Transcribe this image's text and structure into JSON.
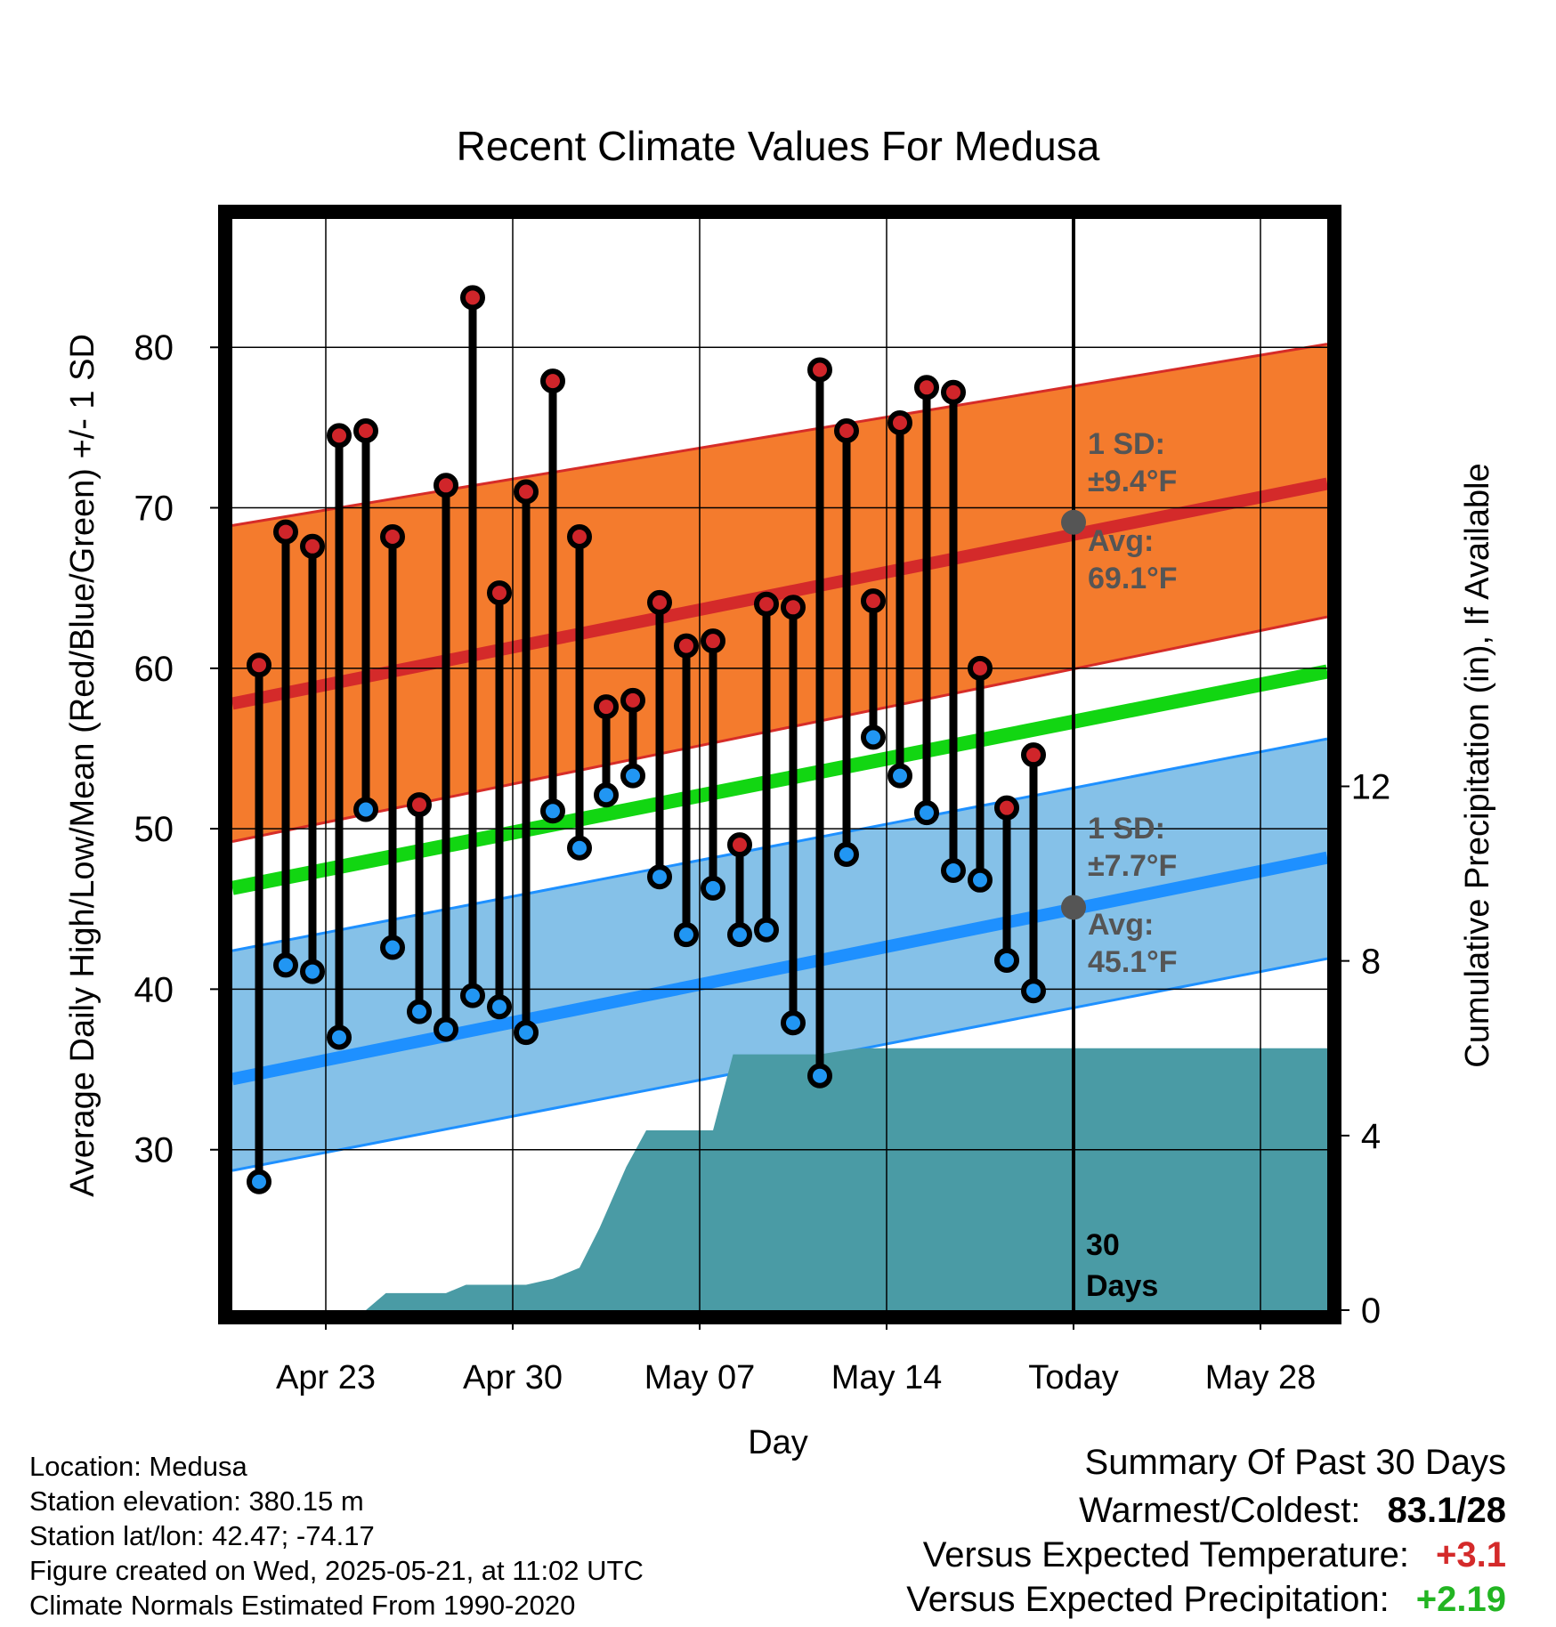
{
  "chart_data": {
    "type": "range-dot",
    "title": "Recent Climate Values For Medusa",
    "xlabel": "Day",
    "ylabel_left": "Average Daily High/Low/Mean (Red/Blue/Green) +/- 1 SD",
    "ylabel_right": "Cumulative Precipitation (in), If Available",
    "x_tick_labels": [
      "Apr 23",
      "Apr 30",
      "May 07",
      "May 14",
      "Today",
      "May 28"
    ],
    "x_tick_dates": [
      "2025-04-23",
      "2025-04-30",
      "2025-05-07",
      "2025-05-14",
      "2025-05-21",
      "2025-05-28"
    ],
    "x_range": [
      "2025-04-19T12:00",
      "2025-05-30T12:00"
    ],
    "y_left_ticks": [
      30,
      40,
      50,
      60,
      70,
      80
    ],
    "y_left_range": [
      20,
      88
    ],
    "y_right_ticks": [
      0,
      4,
      8,
      12
    ],
    "y_right_range": [
      0,
      25.0
    ],
    "grid": true,
    "today_marker": {
      "date": "2025-05-21",
      "label_line1": "30",
      "label_line2": "Days"
    },
    "daily": [
      {
        "date": "2025-04-20",
        "high": 60.2,
        "low": 28.0
      },
      {
        "date": "2025-04-21",
        "high": 68.5,
        "low": 41.5
      },
      {
        "date": "2025-04-22",
        "high": 67.6,
        "low": 41.1
      },
      {
        "date": "2025-04-23",
        "high": 74.5,
        "low": 37.0
      },
      {
        "date": "2025-04-24",
        "high": 74.8,
        "low": 51.2
      },
      {
        "date": "2025-04-25",
        "high": 68.2,
        "low": 42.6
      },
      {
        "date": "2025-04-26",
        "high": 51.5,
        "low": 38.6
      },
      {
        "date": "2025-04-27",
        "high": 71.4,
        "low": 37.5
      },
      {
        "date": "2025-04-28",
        "high": 83.1,
        "low": 39.6
      },
      {
        "date": "2025-04-29",
        "high": 64.7,
        "low": 38.9
      },
      {
        "date": "2025-04-30",
        "high": 71.0,
        "low": 37.3
      },
      {
        "date": "2025-05-01",
        "high": 77.9,
        "low": 51.1
      },
      {
        "date": "2025-05-02",
        "high": 68.2,
        "low": 48.8
      },
      {
        "date": "2025-05-03",
        "high": 57.6,
        "low": 52.1
      },
      {
        "date": "2025-05-04",
        "high": 58.0,
        "low": 53.3
      },
      {
        "date": "2025-05-05",
        "high": 64.1,
        "low": 47.0
      },
      {
        "date": "2025-05-06",
        "high": 61.4,
        "low": 43.4
      },
      {
        "date": "2025-05-07",
        "high": 61.7,
        "low": 46.3
      },
      {
        "date": "2025-05-08",
        "high": 49.0,
        "low": 43.4
      },
      {
        "date": "2025-05-09",
        "high": 64.0,
        "low": 43.7
      },
      {
        "date": "2025-05-10",
        "high": 63.8,
        "low": 37.9
      },
      {
        "date": "2025-05-11",
        "high": 78.6,
        "low": 34.6
      },
      {
        "date": "2025-05-12",
        "high": 74.8,
        "low": 48.4
      },
      {
        "date": "2025-05-13",
        "high": 64.2,
        "low": 55.7
      },
      {
        "date": "2025-05-14",
        "high": 75.3,
        "low": 53.3
      },
      {
        "date": "2025-05-15",
        "high": 77.5,
        "low": 51.0
      },
      {
        "date": "2025-05-16",
        "high": 77.2,
        "low": 47.4
      },
      {
        "date": "2025-05-17",
        "high": 60.0,
        "low": 46.8
      },
      {
        "date": "2025-05-18",
        "high": 51.3,
        "low": 41.8
      },
      {
        "date": "2025-05-19",
        "high": 54.6,
        "low": 39.9
      }
    ],
    "normals": {
      "x": [
        "2025-04-19T12:00",
        "2025-05-30T12:00"
      ],
      "high_avg": [
        57.8,
        71.5
      ],
      "high_sd_band": [
        [
          49.2,
          68.9
        ],
        [
          63.2,
          80.2
        ]
      ],
      "mean_avg": [
        46.3,
        59.8
      ],
      "low_avg": [
        34.4,
        48.2
      ],
      "low_sd_band": [
        [
          28.7,
          42.4
        ],
        [
          41.9,
          55.6
        ]
      ]
    },
    "precip_cumulative": {
      "x": [
        "2025-04-24T12:00",
        "2025-04-25T06:00",
        "2025-04-26T12:00",
        "2025-04-27T12:00",
        "2025-04-28T06:00",
        "2025-04-29T12:00",
        "2025-04-30T12:00",
        "2025-05-01T12:00",
        "2025-05-02T12:00",
        "2025-05-03T06:00",
        "2025-05-04T06:00",
        "2025-05-05T00:00",
        "2025-05-06T12:00",
        "2025-05-07T12:00",
        "2025-05-08T06:00",
        "2025-05-08T12:00",
        "2025-05-11T12:00",
        "2025-05-12T12:00",
        "2025-05-13T00:00",
        "2025-05-30T12:00"
      ],
      "y": [
        0.0,
        0.39,
        0.39,
        0.39,
        0.58,
        0.58,
        0.58,
        0.72,
        0.97,
        1.88,
        3.28,
        4.12,
        4.12,
        4.12,
        5.86,
        5.86,
        5.86,
        5.96,
        6.0,
        6.0
      ]
    },
    "annotations": {
      "high_sd_line1": "1 SD:",
      "high_sd_line2": "±9.4°F",
      "high_avg_line1": "Avg:",
      "high_avg_line2": "69.1°F",
      "low_sd_line1": "1 SD:",
      "low_sd_line2": "±7.7°F",
      "low_avg_line1": "Avg:",
      "low_avg_line2": "45.1°F",
      "high_avg_value": 69.1,
      "low_avg_value": 45.1
    },
    "colors": {
      "high_band": "#f47b2d",
      "high_band_edge": "#d62c28",
      "high_line": "#d42a2a",
      "mean_line": "#12d612",
      "low_band": "#85c1e8",
      "low_band_edge": "#1e90ff",
      "low_line": "#1e90ff",
      "precip": "#4a9ba5",
      "high_dot": "#d0252a",
      "low_dot": "#2196f3",
      "avg_marker": "#555555",
      "annotation_text": "#555555"
    }
  },
  "footer": {
    "location": "Location: Medusa",
    "elevation": "Station elevation: 380.15 m",
    "latlon": "Station lat/lon: 42.47; -74.17",
    "created": "Figure created on Wed, 2025-05-21, at 11:02 UTC",
    "normals": "Climate Normals Estimated From 1990-2020"
  },
  "summary": {
    "heading": "Summary Of Past 30 Days",
    "warmest_label": "Warmest/Coldest:",
    "warmest_value": "83.1/28",
    "temp_label": "Versus Expected Temperature:",
    "temp_value": "+3.1",
    "temp_color": "#d42a2a",
    "precip_label": "Versus Expected Precipitation:",
    "precip_value": "+2.19",
    "precip_color": "#22b522"
  }
}
